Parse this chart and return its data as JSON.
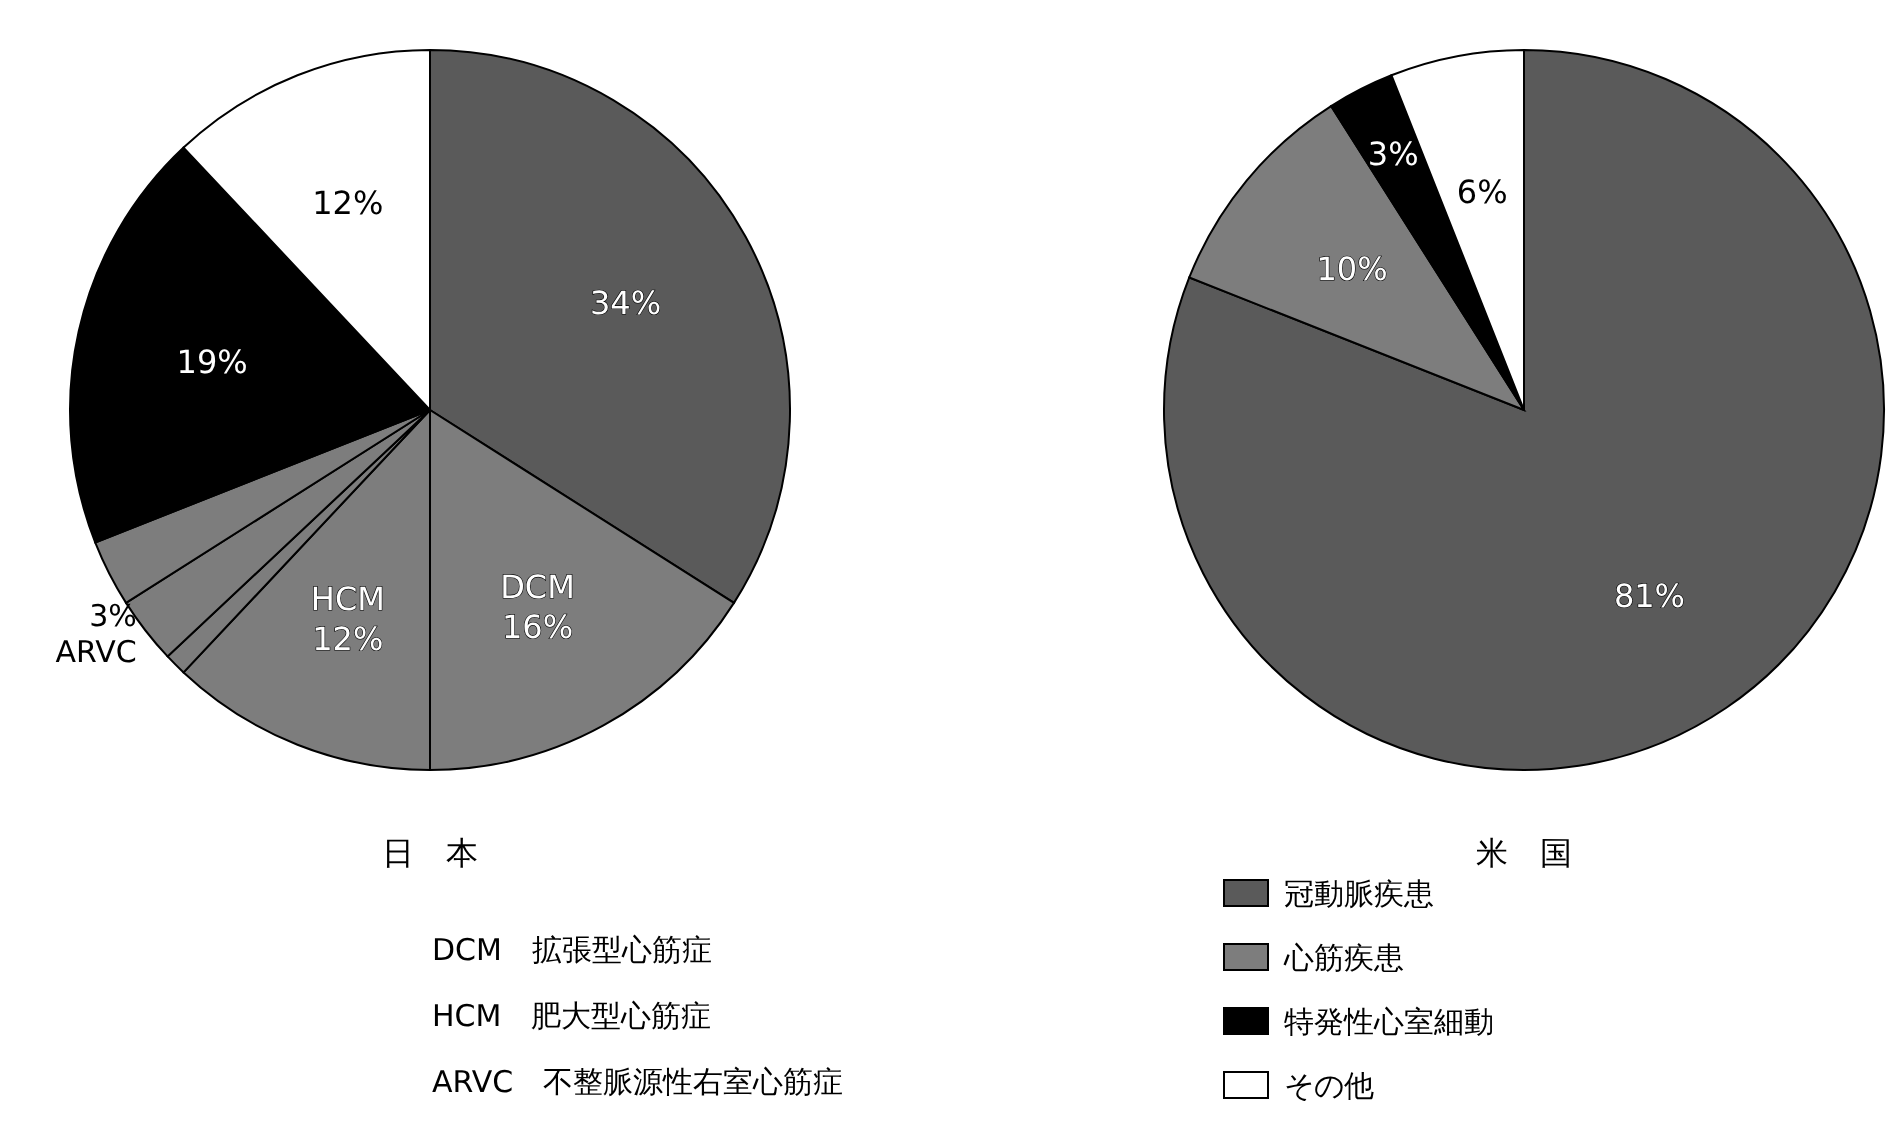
{
  "chart_data": [
    {
      "type": "pie",
      "title": "日　本",
      "categories": [
        null,
        "DCM",
        "HCM",
        null,
        "ARVC",
        null,
        null,
        null
      ],
      "values": [
        34,
        16,
        12,
        1,
        3,
        3,
        19,
        12
      ],
      "colors": [
        "#5a5a5a",
        "#7d7d7d",
        "#7d7d7d",
        "#7d7d7d",
        "#7d7d7d",
        "#7d7d7d",
        "#000000",
        "#ffffff"
      ],
      "value_labels": [
        "34%",
        "16%",
        "12%",
        null,
        "3%",
        null,
        "19%",
        "12%"
      ],
      "legend": false,
      "annotations": [
        "DCM　拡張型心筋症",
        "HCM　肥大型心筋症",
        "ARVC　不整脈源性右室心筋症"
      ]
    },
    {
      "type": "pie",
      "title": "米　国",
      "categories": [
        "冠動脈疾患",
        "心筋疾患",
        "特発性心室細動",
        "その他"
      ],
      "values": [
        81,
        10,
        3,
        6
      ],
      "colors": [
        "#5a5a5a",
        "#7d7d7d",
        "#000000",
        "#ffffff"
      ],
      "value_labels": [
        "81%",
        "10%",
        "3%",
        "6%"
      ],
      "legend": "bottom"
    }
  ]
}
